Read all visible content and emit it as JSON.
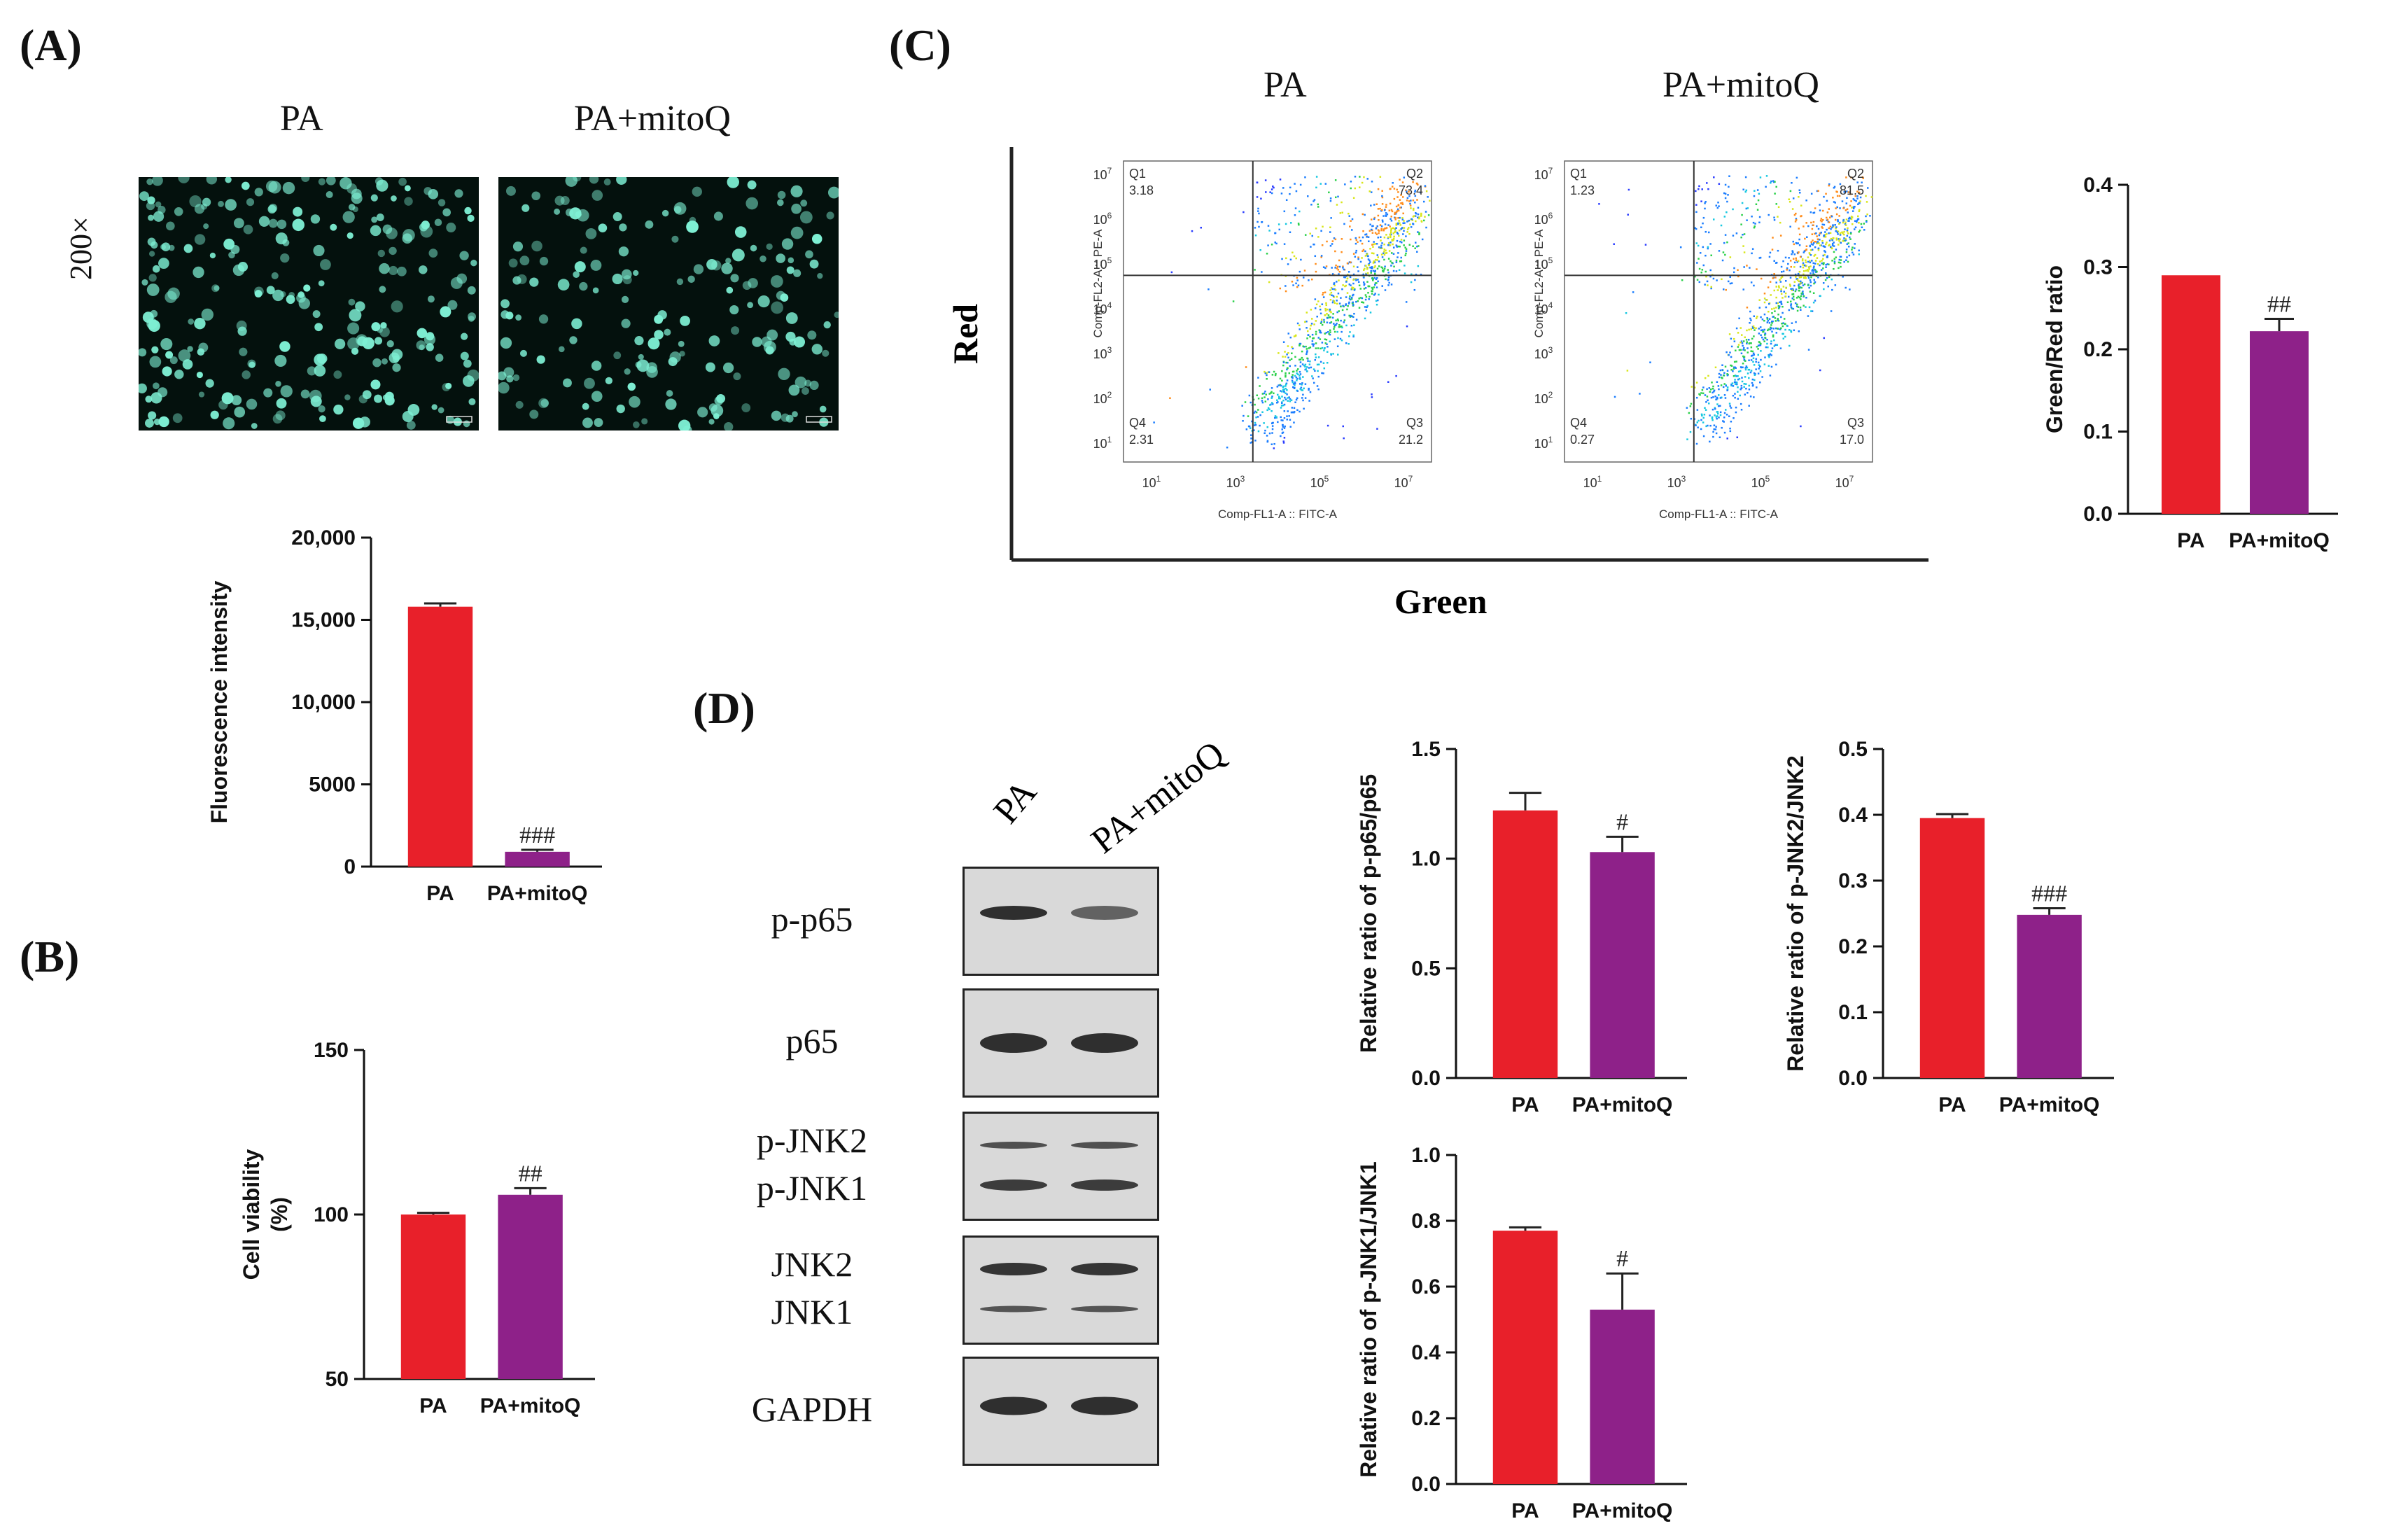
{
  "panels": {
    "A": {
      "label": "(A)",
      "image_labels": [
        "PA",
        "PA+mitoQ"
      ],
      "magnification": "200×",
      "chart_ref": "fluorescence"
    },
    "B": {
      "label": "(B)"
    },
    "C": {
      "label": "(C)",
      "conditions": [
        "PA",
        "PA+mitoQ"
      ],
      "axis_red": "Red",
      "axis_green": "Green",
      "flow": [
        {
          "name": "PA",
          "q1_label": "Q1",
          "q1": "3.18",
          "q2_label": "Q2",
          "q2": "73.4",
          "q3_label": "Q3",
          "q3": "21.2",
          "q4_label": "Q4",
          "q4": "2.31",
          "x_label": "Comp-FL1-A :: FITC-A",
          "y_label": "Comp-FL2-A :: PE-A"
        },
        {
          "name": "PA+mitoQ",
          "q1_label": "Q1",
          "q1": "1.23",
          "q2_label": "Q2",
          "q2": "81.5",
          "q3_label": "Q3",
          "q3": "17.0",
          "q4_label": "Q4",
          "q4": "0.27",
          "x_label": "Comp-FL1-A :: FITC-A",
          "y_label": "Comp-FL2-A :: PE-A"
        }
      ],
      "flow_ticks_x": [
        "10",
        "10",
        "10",
        "10"
      ],
      "flow_ticks_x_exp": [
        "1",
        "3",
        "5",
        "7"
      ],
      "flow_ticks_y": [
        "10",
        "10",
        "10",
        "10",
        "10",
        "10",
        "10"
      ],
      "flow_ticks_y_exp": [
        "7",
        "6",
        "5",
        "4",
        "3",
        "2",
        "1"
      ]
    },
    "D": {
      "label": "(D)",
      "lanes": [
        "PA",
        "PA+mitoQ"
      ],
      "blot_labels": [
        {
          "name": "p-p65",
          "lines": [
            "p-p65"
          ]
        },
        {
          "name": "p65",
          "lines": [
            "p65"
          ]
        },
        {
          "name": "p-JNK",
          "lines": [
            "p-JNK2",
            "p-JNK1"
          ]
        },
        {
          "name": "JNK",
          "lines": [
            "JNK2",
            "JNK1"
          ]
        },
        {
          "name": "GAPDH",
          "lines": [
            "GAPDH"
          ]
        }
      ]
    }
  },
  "colors": {
    "pa": "#e8202a",
    "mitoq": "#8e2189",
    "axis": "#111111"
  },
  "chart_data": [
    {
      "id": "fluorescence",
      "type": "bar",
      "categories": [
        "PA",
        "PA+mitoQ"
      ],
      "values": [
        15800,
        900
      ],
      "errors": [
        200,
        120
      ],
      "ylabel": "Fluorescence intensity",
      "ylim": [
        0,
        20000
      ],
      "yticks": [
        0,
        5000,
        10000,
        15000,
        20000
      ],
      "ytick_labels": [
        "0",
        "5000",
        "10,000",
        "15,000",
        "20,000"
      ],
      "annotations": [
        "",
        "###"
      ]
    },
    {
      "id": "viability",
      "type": "bar",
      "categories": [
        "PA",
        "PA+mitoQ"
      ],
      "values": [
        100,
        106
      ],
      "errors": [
        0.5,
        2
      ],
      "ylabel": "Cell viability (%)",
      "ylabel_lines": [
        "Cell viability",
        "(%)"
      ],
      "ylim": [
        50,
        150
      ],
      "yticks": [
        50,
        100,
        150
      ],
      "ytick_labels": [
        "50",
        "100",
        "150"
      ],
      "annotations": [
        "",
        "##"
      ]
    },
    {
      "id": "green_red",
      "type": "bar",
      "categories": [
        "PA",
        "PA+mitoQ"
      ],
      "values": [
        0.29,
        0.222
      ],
      "errors": [
        0,
        0.015
      ],
      "ylabel": "Green/Red ratio",
      "ylim": [
        0,
        0.4
      ],
      "yticks": [
        0,
        0.1,
        0.2,
        0.3,
        0.4
      ],
      "ytick_labels": [
        "0.0",
        "0.1",
        "0.2",
        "0.3",
        "0.4"
      ],
      "annotations": [
        "",
        "##"
      ]
    },
    {
      "id": "p65",
      "type": "bar",
      "categories": [
        "PA",
        "PA+mitoQ"
      ],
      "values": [
        1.22,
        1.03
      ],
      "errors": [
        0.08,
        0.07
      ],
      "ylabel": "Relative ratio of p-p65/p65",
      "ylim": [
        0,
        1.5
      ],
      "yticks": [
        0,
        0.5,
        1.0,
        1.5
      ],
      "ytick_labels": [
        "0.0",
        "0.5",
        "1.0",
        "1.5"
      ],
      "annotations": [
        "",
        "#"
      ]
    },
    {
      "id": "jnk2",
      "type": "bar",
      "categories": [
        "PA",
        "PA+mitoQ"
      ],
      "values": [
        0.395,
        0.248
      ],
      "errors": [
        0.006,
        0.01
      ],
      "ylabel": "Relative ratio of p-JNK2/JNK2",
      "ylim": [
        0,
        0.5
      ],
      "yticks": [
        0,
        0.1,
        0.2,
        0.3,
        0.4,
        0.5
      ],
      "ytick_labels": [
        "0.0",
        "0.1",
        "0.2",
        "0.3",
        "0.4",
        "0.5"
      ],
      "annotations": [
        "",
        "###"
      ]
    },
    {
      "id": "jnk1",
      "type": "bar",
      "categories": [
        "PA",
        "PA+mitoQ"
      ],
      "values": [
        0.77,
        0.53
      ],
      "errors": [
        0.01,
        0.11
      ],
      "ylabel": "Relative ratio of p-JNK1/JNK1",
      "ylim": [
        0,
        1.0
      ],
      "yticks": [
        0,
        0.2,
        0.4,
        0.6,
        0.8,
        1.0
      ],
      "ytick_labels": [
        "0.0",
        "0.2",
        "0.4",
        "0.6",
        "0.8",
        "1.0"
      ],
      "annotations": [
        "",
        "#"
      ]
    }
  ]
}
